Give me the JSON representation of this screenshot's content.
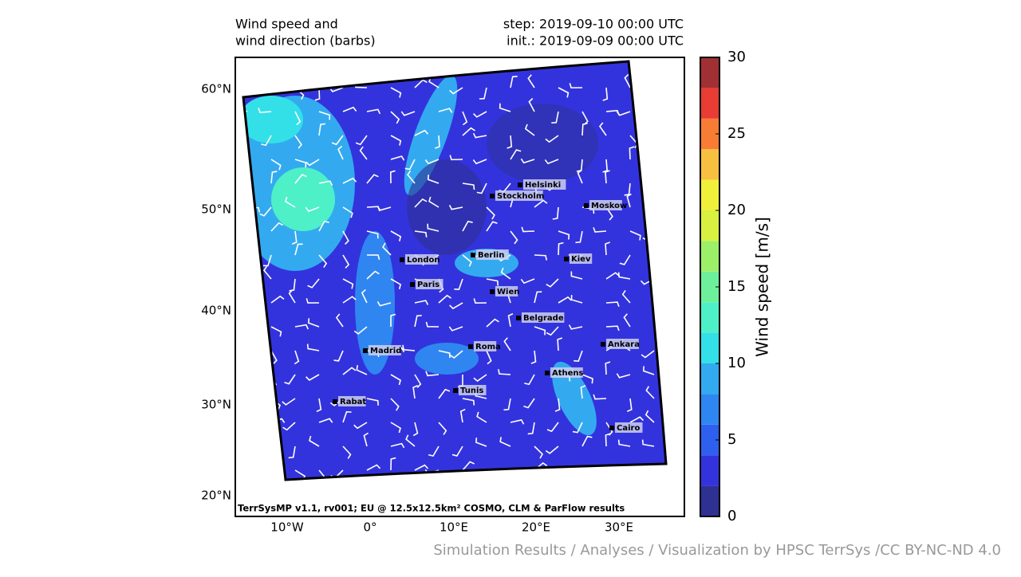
{
  "title_lines": [
    "Wind speed and",
    "wind direction (barbs)"
  ],
  "step": "step: 2019-09-10 00:00 UTC",
  "init": "init.: 2019-09-09 00:00 UTC",
  "lat_labels": [
    "60°N",
    "50°N",
    "40°N",
    "30°N",
    "20°N"
  ],
  "lon_labels": [
    "10°W",
    "0°",
    "10°E",
    "20°E",
    "30°E"
  ],
  "cities": [
    "Helsinki",
    "Stockholm",
    "Moskow",
    "Berlin",
    "London",
    "Kiev",
    "Paris",
    "Wien",
    "Belgrade",
    "Madrid",
    "Roma",
    "Ankara",
    "Athens",
    "Tunis",
    "Rabat",
    "Cairo"
  ],
  "model_note": "TerrSysMP v1.1, rv001; EU @ 12.5x12.5km² COSMO, CLM & ParFlow results",
  "credit": "Simulation Results / Analyses / Visualization by HPSC TerrSys /CC BY-NC-ND 4.0",
  "colorbar": {
    "label": "Wind speed [m/s]",
    "lim": [
      0,
      30
    ],
    "ticks": [
      0,
      5,
      10,
      15,
      20,
      25,
      30
    ],
    "levels": [
      0,
      2,
      4,
      6,
      8,
      10,
      12,
      14,
      16,
      18,
      20,
      22,
      24,
      26,
      28,
      30
    ],
    "colors": [
      "#2e3192",
      "#3333dd",
      "#2f5fef",
      "#2f86f0",
      "#33aaf0",
      "#33e0e8",
      "#4ef0c8",
      "#6ef09a",
      "#9cf068",
      "#d8f040",
      "#f0f03a",
      "#f8c040",
      "#f87c34",
      "#e83c34",
      "#a03034"
    ]
  }
}
